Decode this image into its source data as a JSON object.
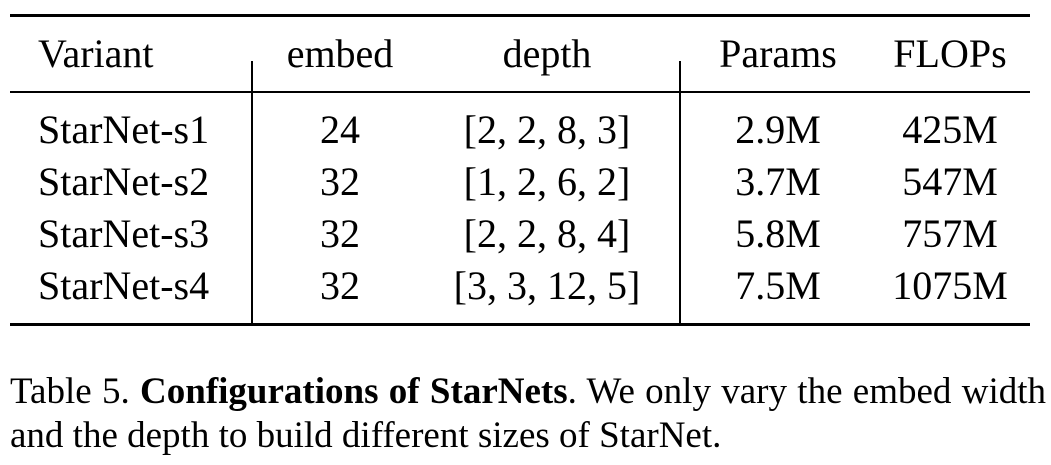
{
  "table": {
    "headers": [
      "Variant",
      "embed",
      "depth",
      "Params",
      "FLOPs"
    ],
    "rows": [
      [
        "StarNet-s1",
        "24",
        "[2, 2, 8, 3]",
        "2.9M",
        "425M"
      ],
      [
        "StarNet-s2",
        "32",
        "[1, 2, 6, 2]",
        "3.7M",
        "547M"
      ],
      [
        "StarNet-s3",
        "32",
        "[2, 2, 8, 4]",
        "5.8M",
        "757M"
      ],
      [
        "StarNet-s4",
        "32",
        "[3, 3, 12, 5]",
        "7.5M",
        "1075M"
      ]
    ]
  },
  "caption": {
    "label": "Table 5.",
    "title": "Configurations of StarNets",
    "text": ". We only vary the embed width and the depth to build different sizes of StarNet."
  }
}
